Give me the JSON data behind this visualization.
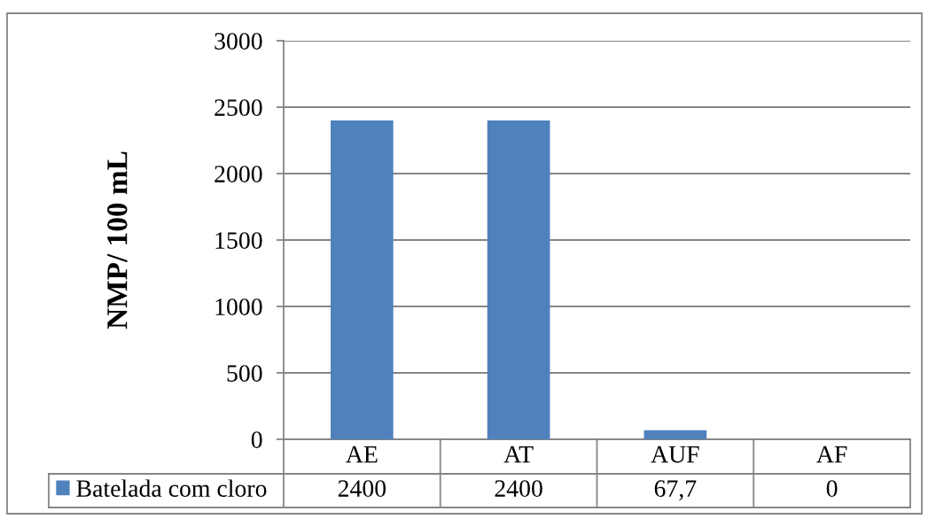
{
  "chart_data": {
    "type": "bar",
    "ylabel": "NMP/ 100 mL",
    "categories": [
      "AE",
      "AT",
      "AUF",
      "AF"
    ],
    "series": [
      {
        "name": "Batelada com cloro",
        "color": "#4f81bd",
        "values": [
          2400,
          2400,
          67.7,
          0
        ],
        "value_labels": [
          "2400",
          "2400",
          "67,7",
          "0"
        ]
      }
    ],
    "ylim": [
      0,
      3000
    ],
    "yticks": [
      0,
      500,
      1000,
      1500,
      2000,
      2500,
      3000
    ],
    "grid": "y",
    "legend": "bottom"
  }
}
